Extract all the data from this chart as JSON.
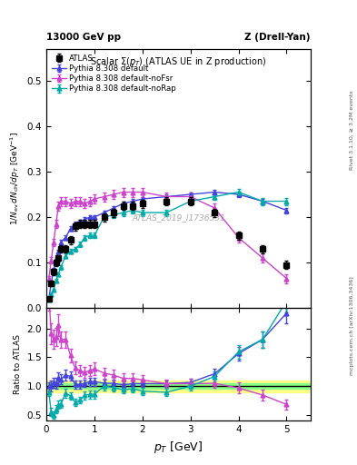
{
  "title_left": "13000 GeV pp",
  "title_right": "Z (Drell-Yan)",
  "plot_title": "Scalar $\\Sigma(p_T)$ (ATLAS UE in Z production)",
  "ylabel_main": "$1/N_{\\mathrm{ev}}\\,dN_{\\mathrm{ch}}/dp_T\\ [\\mathrm{GeV}^{-1}]$",
  "ylabel_ratio": "Ratio to ATLAS",
  "xlabel": "$p_T$ [GeV]",
  "watermark": "ATLAS_2019_I1736531",
  "right_label1": "Rivet 3.1.10, ≥ 3.2M events",
  "right_label2": "mcplots.cern.ch [arXiv:1306.3436]",
  "atlas_x": [
    0.05,
    0.1,
    0.15,
    0.2,
    0.25,
    0.3,
    0.4,
    0.5,
    0.6,
    0.7,
    0.8,
    0.9,
    1.0,
    1.2,
    1.4,
    1.6,
    1.8,
    2.0,
    2.5,
    3.0,
    3.5,
    4.0,
    4.5,
    5.0
  ],
  "atlas_y": [
    0.02,
    0.055,
    0.08,
    0.1,
    0.11,
    0.13,
    0.13,
    0.15,
    0.18,
    0.185,
    0.185,
    0.185,
    0.185,
    0.2,
    0.21,
    0.225,
    0.225,
    0.23,
    0.235,
    0.235,
    0.21,
    0.16,
    0.13,
    0.095
  ],
  "atlas_yerr": [
    0.004,
    0.006,
    0.007,
    0.007,
    0.007,
    0.008,
    0.008,
    0.009,
    0.009,
    0.009,
    0.009,
    0.009,
    0.009,
    0.009,
    0.009,
    0.009,
    0.009,
    0.009,
    0.009,
    0.009,
    0.009,
    0.009,
    0.009,
    0.009
  ],
  "py_default_x": [
    0.05,
    0.1,
    0.15,
    0.2,
    0.25,
    0.3,
    0.4,
    0.5,
    0.6,
    0.7,
    0.8,
    0.9,
    1.0,
    1.2,
    1.4,
    1.6,
    1.8,
    2.0,
    2.5,
    3.0,
    3.5,
    4.0,
    4.5,
    5.0
  ],
  "py_default_y": [
    0.02,
    0.055,
    0.085,
    0.105,
    0.125,
    0.145,
    0.155,
    0.175,
    0.185,
    0.19,
    0.195,
    0.2,
    0.2,
    0.21,
    0.22,
    0.23,
    0.235,
    0.24,
    0.245,
    0.25,
    0.255,
    0.25,
    0.235,
    0.215
  ],
  "py_default_yerr": [
    0.002,
    0.004,
    0.004,
    0.004,
    0.004,
    0.005,
    0.005,
    0.005,
    0.005,
    0.005,
    0.005,
    0.005,
    0.005,
    0.005,
    0.005,
    0.005,
    0.005,
    0.005,
    0.005,
    0.005,
    0.005,
    0.006,
    0.006,
    0.006
  ],
  "py_default_color": "#4444dd",
  "py_nofsr_x": [
    0.05,
    0.1,
    0.15,
    0.2,
    0.25,
    0.3,
    0.4,
    0.5,
    0.6,
    0.7,
    0.8,
    0.9,
    1.0,
    1.2,
    1.4,
    1.6,
    1.8,
    2.0,
    2.5,
    3.0,
    3.5,
    4.0,
    4.5,
    5.0
  ],
  "py_nofsr_y": [
    0.065,
    0.105,
    0.145,
    0.185,
    0.225,
    0.235,
    0.235,
    0.23,
    0.235,
    0.235,
    0.23,
    0.235,
    0.24,
    0.245,
    0.25,
    0.255,
    0.255,
    0.255,
    0.245,
    0.245,
    0.22,
    0.155,
    0.11,
    0.065
  ],
  "py_nofsr_yerr": [
    0.005,
    0.007,
    0.008,
    0.009,
    0.01,
    0.01,
    0.01,
    0.01,
    0.01,
    0.01,
    0.01,
    0.01,
    0.01,
    0.01,
    0.01,
    0.01,
    0.01,
    0.01,
    0.01,
    0.01,
    0.01,
    0.01,
    0.01,
    0.01
  ],
  "py_nofsr_color": "#cc44cc",
  "py_norap_x": [
    0.05,
    0.1,
    0.15,
    0.2,
    0.25,
    0.3,
    0.4,
    0.5,
    0.6,
    0.7,
    0.8,
    0.9,
    1.0,
    1.2,
    1.4,
    1.6,
    1.8,
    2.0,
    2.5,
    3.0,
    3.5,
    4.0,
    4.5,
    5.0
  ],
  "py_norap_y": [
    0.018,
    0.03,
    0.04,
    0.06,
    0.075,
    0.09,
    0.115,
    0.125,
    0.13,
    0.14,
    0.155,
    0.16,
    0.16,
    0.2,
    0.205,
    0.21,
    0.215,
    0.21,
    0.21,
    0.235,
    0.245,
    0.255,
    0.235,
    0.235
  ],
  "py_norap_yerr": [
    0.002,
    0.003,
    0.003,
    0.004,
    0.004,
    0.005,
    0.005,
    0.005,
    0.005,
    0.006,
    0.006,
    0.006,
    0.006,
    0.006,
    0.006,
    0.007,
    0.007,
    0.007,
    0.007,
    0.007,
    0.007,
    0.008,
    0.008,
    0.008
  ],
  "py_norap_color": "#00aaaa",
  "ratio_x": [
    0.05,
    0.1,
    0.15,
    0.2,
    0.25,
    0.3,
    0.4,
    0.5,
    0.6,
    0.7,
    0.8,
    0.9,
    1.0,
    1.2,
    1.4,
    1.6,
    1.8,
    2.0,
    2.5,
    3.0,
    3.5,
    4.0,
    4.5,
    5.0
  ],
  "ratio_default_y": [
    1.0,
    1.0,
    1.06,
    1.05,
    1.14,
    1.12,
    1.19,
    1.17,
    1.03,
    1.03,
    1.05,
    1.08,
    1.08,
    1.05,
    1.048,
    1.022,
    1.044,
    1.044,
    1.042,
    1.064,
    1.214,
    1.563,
    1.808,
    2.263
  ],
  "ratio_default_yerr": [
    0.07,
    0.09,
    0.09,
    0.09,
    0.1,
    0.09,
    0.09,
    0.08,
    0.07,
    0.07,
    0.07,
    0.07,
    0.07,
    0.06,
    0.06,
    0.06,
    0.06,
    0.06,
    0.06,
    0.07,
    0.09,
    0.12,
    0.14,
    0.18
  ],
  "ratio_nofsr_y": [
    2.6,
    1.91,
    1.81,
    1.85,
    2.05,
    1.81,
    1.81,
    1.53,
    1.31,
    1.27,
    1.24,
    1.27,
    1.3,
    1.225,
    1.19,
    1.133,
    1.133,
    1.109,
    1.043,
    1.043,
    1.048,
    0.969,
    0.846,
    0.684
  ],
  "ratio_nofsr_yerr": [
    0.3,
    0.18,
    0.16,
    0.16,
    0.19,
    0.14,
    0.14,
    0.12,
    0.11,
    0.1,
    0.1,
    0.1,
    0.11,
    0.09,
    0.09,
    0.09,
    0.09,
    0.09,
    0.07,
    0.08,
    0.08,
    0.09,
    0.09,
    0.09
  ],
  "ratio_norap_y": [
    0.9,
    0.55,
    0.5,
    0.6,
    0.68,
    0.69,
    0.88,
    0.83,
    0.72,
    0.76,
    0.84,
    0.86,
    0.86,
    1.0,
    0.976,
    0.933,
    0.956,
    0.913,
    0.894,
    1.0,
    1.167,
    1.594,
    1.808,
    2.474
  ],
  "ratio_norap_yerr": [
    0.07,
    0.07,
    0.06,
    0.07,
    0.07,
    0.07,
    0.08,
    0.07,
    0.06,
    0.06,
    0.07,
    0.07,
    0.07,
    0.07,
    0.06,
    0.06,
    0.07,
    0.06,
    0.06,
    0.07,
    0.08,
    0.12,
    0.14,
    0.2
  ],
  "band_green": 0.05,
  "band_yellow": 0.1,
  "xlim": [
    0,
    5.5
  ],
  "ylim_main": [
    0,
    0.57
  ],
  "ylim_ratio": [
    0.4,
    2.35
  ],
  "yticks_main": [
    0.0,
    0.1,
    0.2,
    0.3,
    0.4,
    0.5
  ],
  "yticks_ratio": [
    0.5,
    1.0,
    1.5,
    2.0
  ],
  "xticks": [
    0,
    1,
    2,
    3,
    4,
    5
  ]
}
